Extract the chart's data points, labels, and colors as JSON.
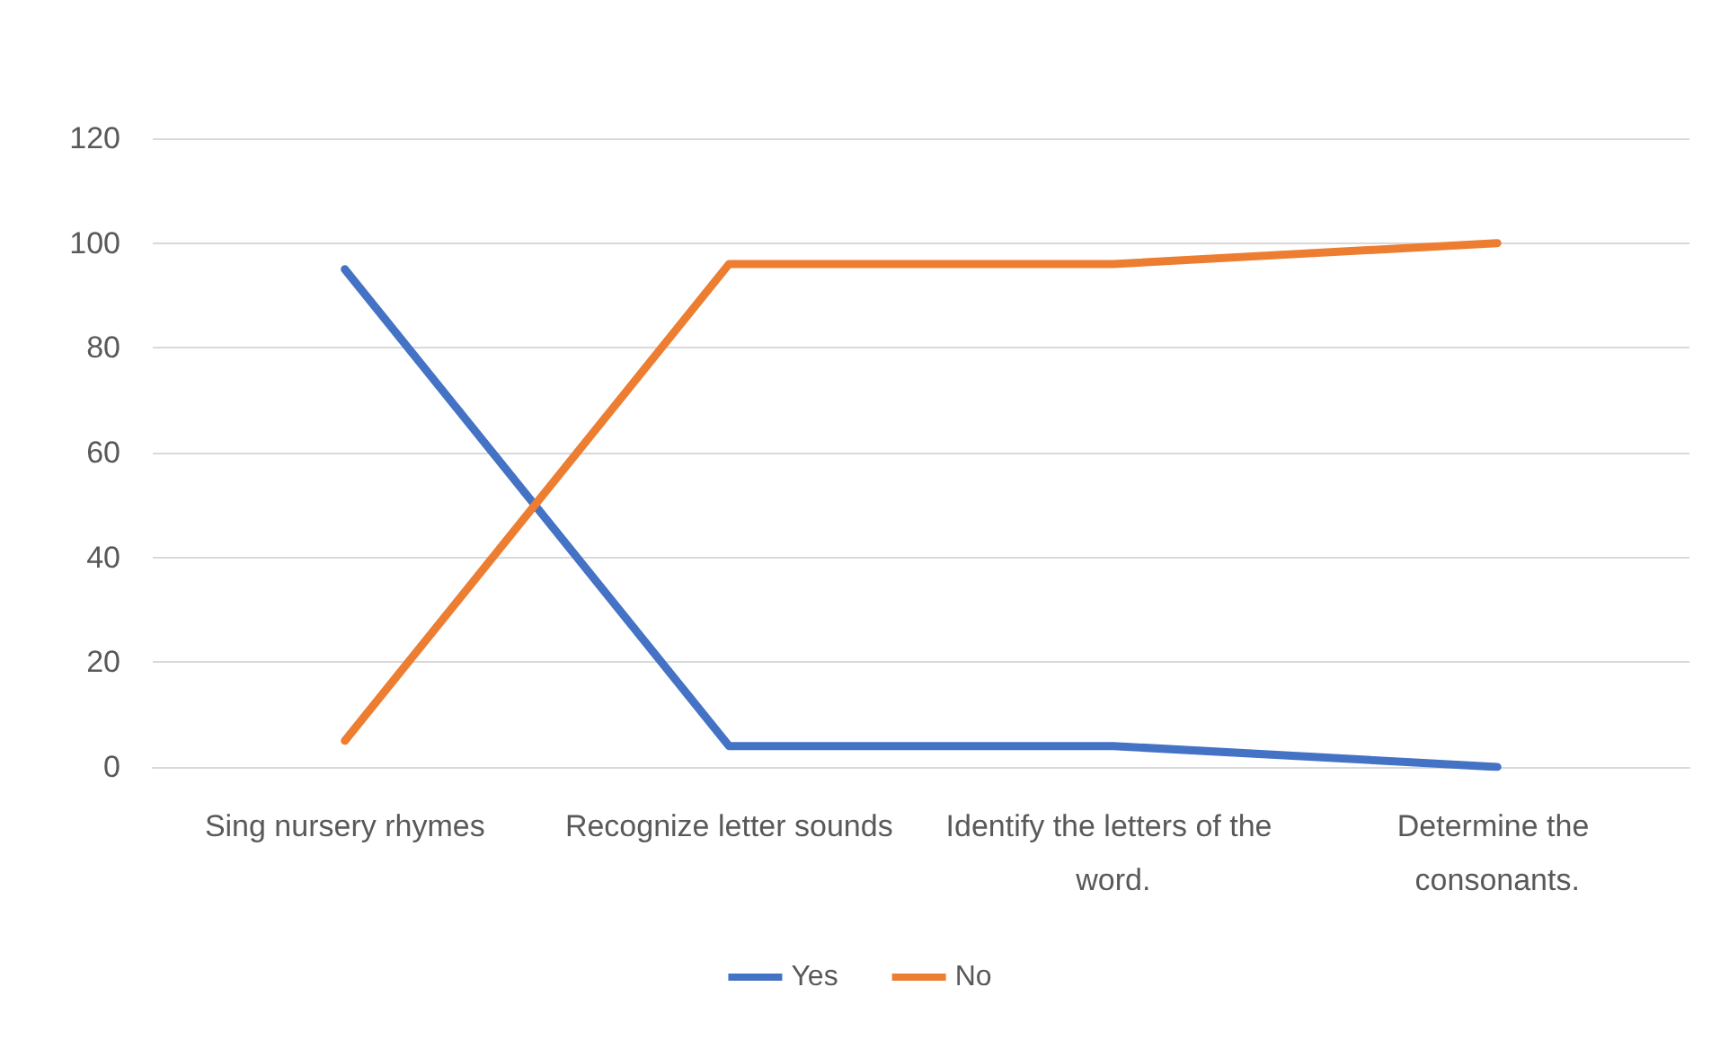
{
  "chart_data": {
    "type": "line",
    "categories": [
      "Sing nursery rhymes",
      "Recognize letter sounds",
      "Identify the letters of the word.",
      "Determine the consonants."
    ],
    "series": [
      {
        "name": "Yes",
        "color": "#4472c4",
        "values": [
          95,
          4,
          4,
          0
        ]
      },
      {
        "name": "No",
        "color": "#ed7d31",
        "values": [
          5,
          96,
          96,
          100
        ]
      }
    ],
    "ylim": [
      0,
      120
    ],
    "yticks": [
      0,
      20,
      40,
      60,
      80,
      100,
      120
    ],
    "grid": "y",
    "legend": "bottom",
    "marker": "none",
    "line_style": "solid"
  }
}
